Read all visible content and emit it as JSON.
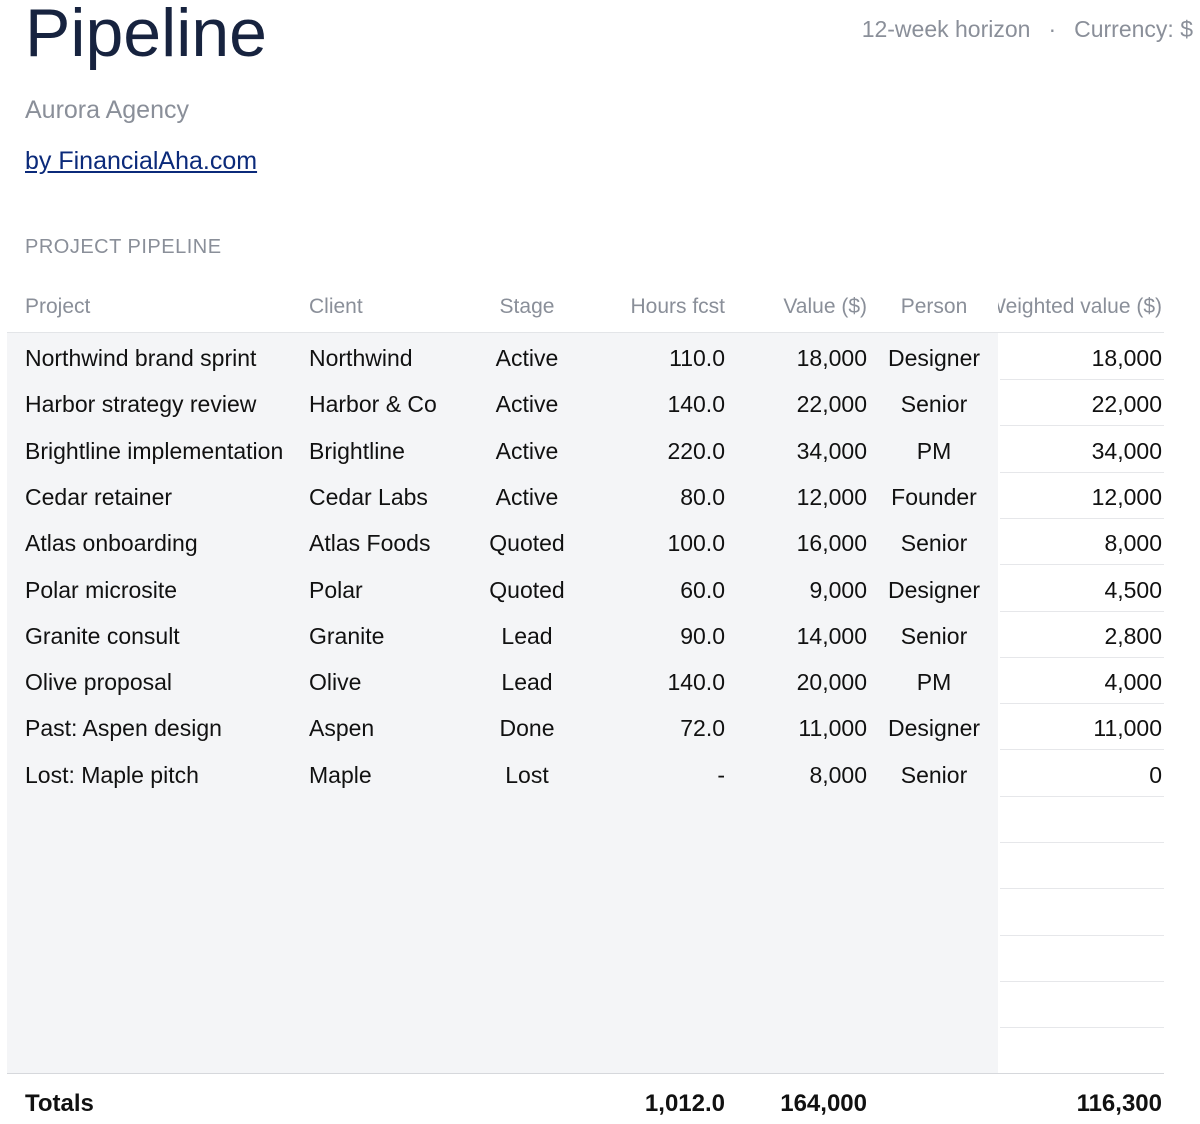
{
  "header": {
    "title": "Pipeline",
    "horizon": "12-week horizon",
    "separator": "·",
    "currency": "Currency: $",
    "agency": "Aurora Agency",
    "byline": "by FinancialAha.com"
  },
  "section_label": "PROJECT PIPELINE",
  "table": {
    "columns": {
      "project": "Project",
      "client": "Client",
      "stage": "Stage",
      "hours": "Hours fcst",
      "value": "Value ($)",
      "person": "Person",
      "weighted": "Weighted value ($)"
    },
    "rows": [
      {
        "project": "Northwind brand sprint",
        "client": "Northwind",
        "stage": "Active",
        "hours": "110.0",
        "value": "18,000",
        "person": "Designer",
        "weighted": "18,000"
      },
      {
        "project": "Harbor strategy review",
        "client": "Harbor & Co",
        "stage": "Active",
        "hours": "140.0",
        "value": "22,000",
        "person": "Senior",
        "weighted": "22,000"
      },
      {
        "project": "Brightline implementation",
        "client": "Brightline",
        "stage": "Active",
        "hours": "220.0",
        "value": "34,000",
        "person": "PM",
        "weighted": "34,000"
      },
      {
        "project": "Cedar retainer",
        "client": "Cedar Labs",
        "stage": "Active",
        "hours": "80.0",
        "value": "12,000",
        "person": "Founder",
        "weighted": "12,000"
      },
      {
        "project": "Atlas onboarding",
        "client": "Atlas Foods",
        "stage": "Quoted",
        "hours": "100.0",
        "value": "16,000",
        "person": "Senior",
        "weighted": "8,000"
      },
      {
        "project": "Polar microsite",
        "client": "Polar",
        "stage": "Quoted",
        "hours": "60.0",
        "value": "9,000",
        "person": "Designer",
        "weighted": "4,500"
      },
      {
        "project": "Granite consult",
        "client": "Granite",
        "stage": "Lead",
        "hours": "90.0",
        "value": "14,000",
        "person": "Senior",
        "weighted": "2,800"
      },
      {
        "project": "Olive proposal",
        "client": "Olive",
        "stage": "Lead",
        "hours": "140.0",
        "value": "20,000",
        "person": "PM",
        "weighted": "4,000"
      },
      {
        "project": "Past: Aspen design",
        "client": "Aspen",
        "stage": "Done",
        "hours": "72.0",
        "value": "11,000",
        "person": "Designer",
        "weighted": "11,000"
      },
      {
        "project": "Lost: Maple pitch",
        "client": "Maple",
        "stage": "Lost",
        "hours": "-",
        "value": "8,000",
        "person": "Senior",
        "weighted": "0"
      }
    ],
    "totals": {
      "label": "Totals",
      "hours": "1,012.0",
      "value": "164,000",
      "weighted": "116,300"
    }
  },
  "colors": {
    "title": "#17233f",
    "muted": "#8a8f99",
    "link": "#0b2a7a",
    "table_bg": "#f4f5f7"
  }
}
